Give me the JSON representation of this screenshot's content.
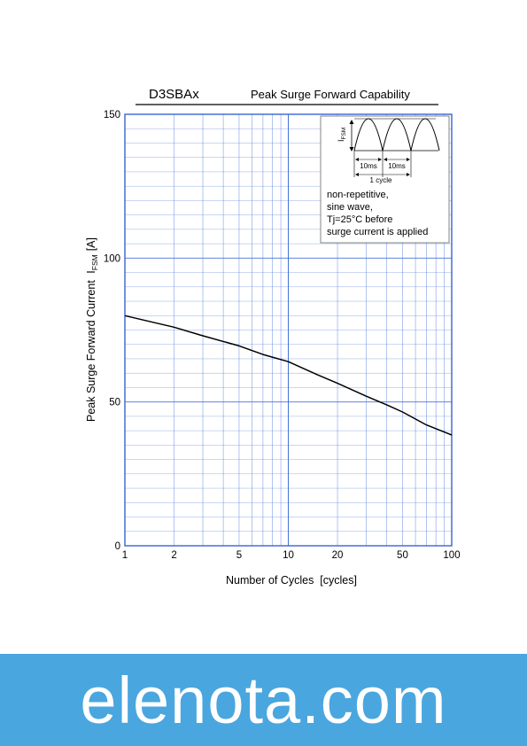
{
  "chart_data": {
    "type": "line",
    "part_number": "D3SBAx",
    "title": "Peak Surge Forward Capability",
    "xlabel": "Number of Cycles  [cycles]",
    "ylabel_main": "Peak Surge Forward Current",
    "ylabel_symbol": "I",
    "ylabel_subscript": "FSM",
    "ylabel_unit": "[A]",
    "xscale": "log",
    "xlim": [
      1,
      100
    ],
    "ylim": [
      0,
      150
    ],
    "xticks": [
      1,
      2,
      5,
      10,
      20,
      50,
      100
    ],
    "xtick_labels": [
      "1",
      "2",
      "5",
      "10",
      "20",
      "50",
      "100"
    ],
    "yticks": [
      0,
      50,
      100,
      150
    ],
    "ytick_labels": [
      "0",
      "50",
      "100",
      "150"
    ],
    "grid": true,
    "series": [
      {
        "x": [
          1,
          2,
          3,
          5,
          7,
          10,
          15,
          20,
          30,
          40,
          50,
          70,
          100
        ],
        "y": [
          80,
          76,
          73,
          69.5,
          66.5,
          64,
          59.5,
          56.5,
          52,
          49,
          46.5,
          42,
          38.5
        ]
      }
    ],
    "inset": {
      "symbol": "I",
      "subscript": "FSM",
      "interval_1": "10ms",
      "interval_2": "10ms",
      "period_label": "1 cycle",
      "note_lines": [
        "non-repetitive,",
        "sine wave,",
        "Tj=25°C before",
        "surge current is applied"
      ]
    }
  },
  "footer": {
    "watermark": "elenota.com"
  },
  "colors": {
    "grid": "#3f6fd6",
    "curve": "#000000",
    "footer_band": "#4aa6df",
    "footer_text": "#ffffff"
  }
}
